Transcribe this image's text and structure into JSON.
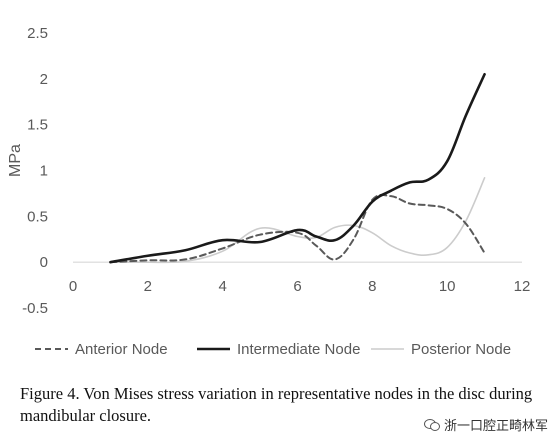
{
  "chart_data": {
    "type": "line",
    "title": "",
    "xlabel": "",
    "ylabel": "MPa",
    "xlim": [
      0,
      12
    ],
    "ylim": [
      -0.5,
      2.5
    ],
    "x_ticks": [
      0,
      2,
      4,
      6,
      8,
      10,
      12
    ],
    "y_ticks": [
      -0.5,
      0,
      0.5,
      1,
      1.5,
      2,
      2.5
    ],
    "x_tick_labels": [
      "0",
      "2",
      "4",
      "6",
      "8",
      "10",
      "12"
    ],
    "y_tick_labels": [
      "-0.5",
      "0",
      "0.5",
      "1",
      "1.5",
      "2",
      "2.5"
    ],
    "grid": false,
    "legend_position": "bottom",
    "series": [
      {
        "name": "Anterior Node",
        "style": "dashed",
        "color": "#595959",
        "x": [
          1,
          2,
          3,
          4,
          5,
          6,
          6.5,
          7,
          7.5,
          8,
          8.5,
          9,
          9.5,
          10,
          10.5,
          11
        ],
        "y": [
          0,
          0.02,
          0.03,
          0.15,
          0.3,
          0.32,
          0.18,
          0.03,
          0.25,
          0.68,
          0.72,
          0.64,
          0.62,
          0.58,
          0.42,
          0.1
        ]
      },
      {
        "name": "Intermediate Node",
        "style": "solid",
        "color": "#1a1a1a",
        "x": [
          1,
          2,
          3,
          4,
          5,
          6,
          6.5,
          7,
          7.5,
          8,
          8.5,
          9,
          9.5,
          10,
          10.5,
          11
        ],
        "y": [
          0,
          0.07,
          0.13,
          0.24,
          0.22,
          0.35,
          0.28,
          0.24,
          0.4,
          0.66,
          0.78,
          0.87,
          0.9,
          1.1,
          1.6,
          2.05
        ]
      },
      {
        "name": "Posterior Node",
        "style": "solid",
        "color": "#cccccc",
        "x": [
          1,
          2,
          3,
          4,
          5,
          6,
          6.5,
          7,
          7.5,
          8,
          8.5,
          9,
          9.5,
          10,
          10.5,
          11
        ],
        "y": [
          0,
          0,
          0.01,
          0.12,
          0.37,
          0.28,
          0.27,
          0.38,
          0.4,
          0.32,
          0.18,
          0.1,
          0.08,
          0.16,
          0.45,
          0.92
        ]
      }
    ]
  },
  "caption": {
    "text": "Figure 4. Von Mises stress variation in representative nodes in the disc during mandibular closure."
  },
  "watermark": {
    "text": "浙一口腔正畸林军"
  }
}
